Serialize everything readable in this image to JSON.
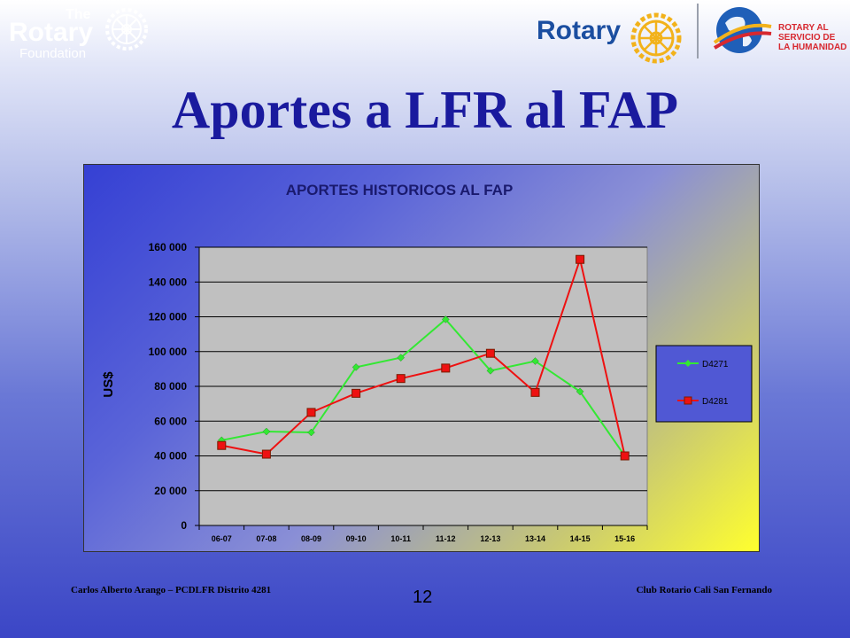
{
  "header": {
    "foundation_logo": {
      "the": "The",
      "rotary": "Rotary",
      "foundation": "Foundation"
    },
    "rotary_logo": {
      "word": "Rotary"
    },
    "humanity_logo": {
      "text": "ROTARY AL\nSERVICIO DE\nLA HUMANIDAD"
    }
  },
  "slide": {
    "title": "Aportes a LFR al FAP"
  },
  "chart_data": {
    "type": "line",
    "title": "APORTES HISTORICOS AL FAP",
    "xlabel": "",
    "ylabel": "US$",
    "categories": [
      "06-07",
      "07-08",
      "08-09",
      "09-10",
      "10-11",
      "11-12",
      "12-13",
      "13-14",
      "14-15",
      "15-16"
    ],
    "ylim": [
      0,
      160000
    ],
    "yticks": [
      0,
      20000,
      40000,
      60000,
      80000,
      100000,
      120000,
      140000,
      160000
    ],
    "ytick_labels": [
      "0",
      "20 000",
      "40 000",
      "60 000",
      "80 000",
      "100 000",
      "120 000",
      "140 000",
      "160 000"
    ],
    "grid": true,
    "legend_position": "right",
    "series": [
      {
        "name": "D4271",
        "color": "#33e833",
        "marker": "diamond",
        "values": [
          49000,
          54000,
          53500,
          91000,
          96500,
          118500,
          89000,
          94500,
          77000,
          40000
        ]
      },
      {
        "name": "D4281",
        "color": "#ee1111",
        "marker": "square",
        "values": [
          46000,
          41000,
          65000,
          76000,
          84500,
          90500,
          99000,
          76500,
          153000,
          40000
        ]
      }
    ]
  },
  "footer": {
    "left": "Carlos Alberto Arango – PCDLFR Distrito 4281",
    "page": "12",
    "right": "Club Rotario Cali San Fernando"
  }
}
